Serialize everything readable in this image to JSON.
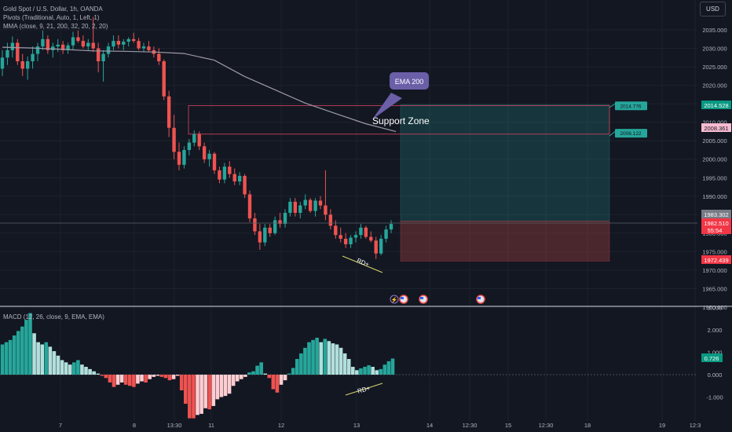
{
  "legend": {
    "line1": "Gold Spot / U.S. Dollar, 1h, OANDA",
    "line2": "Pivots (Traditional, Auto, 1, Left, 1)",
    "line3": "MMA (close, 9, 21, 200, 32, 20, 2, 20)"
  },
  "macd_legend": "MACD (12, 26, close, 9, EMA, EMA)",
  "currency_button": "USD",
  "colors": {
    "up": "#26a69a",
    "down": "#ef5350",
    "macd_pos_weak": "#b2dfdb",
    "macd_neg_weak": "#ffcdd2",
    "ema": "#b2b5be",
    "accent": "#6b5fa8"
  },
  "chart_data": [
    {
      "type": "candlestick",
      "title": "Gold Spot / U.S. Dollar, 1h, OANDA",
      "ylim": [
        1960,
        2040
      ],
      "y_ticks": [
        1960,
        1965,
        1970,
        1975,
        1980,
        1985,
        1990,
        1995,
        2000,
        2005,
        2010,
        2015,
        2020,
        2025,
        2030,
        2035
      ],
      "y_tick_labels": [
        "1960.000",
        "1965.000",
        "1970.000",
        "1975.000",
        "1980.000",
        "1985.000",
        "1990.000",
        "1995.000",
        "2000.000",
        "2005.000",
        "2010.000",
        "2015.000",
        "2020.000",
        "2025.000",
        "2030.000",
        "2035.000"
      ],
      "x_tick_labels": [
        "7",
        "8",
        "13:30",
        "11",
        "12",
        "13",
        "14",
        "12:30",
        "15",
        "12:30",
        "18",
        "19",
        "12:3"
      ],
      "price_labels": {
        "top_zone": "2014.528",
        "mid_zone": "2008.361",
        "current_price": "1983.302",
        "last_price": "1982.510",
        "countdown": "55:54",
        "stop": "1972.439"
      },
      "position_labels": {
        "upper": "2014.776",
        "lower": "2006.122"
      },
      "annotations": {
        "ema": "EMA 200",
        "zone": "Support Zone",
        "divergence": "RD+"
      },
      "series": [
        {
          "name": "EMA 200",
          "values": [
            2030.3,
            2030.1,
            2029.7,
            2029.3,
            2029.2,
            2029.0,
            2028.6,
            2026.8,
            2022.4,
            2018.8,
            2015.2,
            2012.4,
            2009.6,
            2007.5
          ]
        }
      ],
      "candles": [
        {
          "o": 2024.5,
          "h": 2029.5,
          "l": 2022.5,
          "c": 2027.5
        },
        {
          "o": 2027.5,
          "h": 2031.5,
          "l": 2025.5,
          "c": 2029.5
        },
        {
          "o": 2029.5,
          "h": 2033.2,
          "l": 2027.5,
          "c": 2031.5
        },
        {
          "o": 2031.5,
          "h": 2032.5,
          "l": 2025.5,
          "c": 2026.5
        },
        {
          "o": 2026.5,
          "h": 2028.5,
          "l": 2022.5,
          "c": 2024.5
        },
        {
          "o": 2024.5,
          "h": 2027.8,
          "l": 2021.5,
          "c": 2026.5
        },
        {
          "o": 2026.5,
          "h": 2030.5,
          "l": 2024.5,
          "c": 2028.5
        },
        {
          "o": 2028.5,
          "h": 2031.5,
          "l": 2026.5,
          "c": 2030.5
        },
        {
          "o": 2030.5,
          "h": 2034.8,
          "l": 2029.5,
          "c": 2032.5
        },
        {
          "o": 2032.5,
          "h": 2033.5,
          "l": 2028.5,
          "c": 2029.5
        },
        {
          "o": 2029.5,
          "h": 2031.5,
          "l": 2027.5,
          "c": 2030.5
        },
        {
          "o": 2030.5,
          "h": 2032.5,
          "l": 2029.0,
          "c": 2031.0
        },
        {
          "o": 2031.0,
          "h": 2032.0,
          "l": 2028.5,
          "c": 2029.5
        },
        {
          "o": 2029.5,
          "h": 2031.5,
          "l": 2028.5,
          "c": 2030.8
        },
        {
          "o": 2030.8,
          "h": 2034.5,
          "l": 2029.5,
          "c": 2033.0
        },
        {
          "o": 2033.0,
          "h": 2034.8,
          "l": 2031.5,
          "c": 2032.0
        },
        {
          "o": 2032.0,
          "h": 2033.5,
          "l": 2030.0,
          "c": 2030.5
        },
        {
          "o": 2030.5,
          "h": 2032.5,
          "l": 2029.5,
          "c": 2031.5
        },
        {
          "o": 2031.5,
          "h": 2038.5,
          "l": 2029.0,
          "c": 2030.0
        },
        {
          "o": 2030.0,
          "h": 2031.5,
          "l": 2023.5,
          "c": 2026.5
        },
        {
          "o": 2026.5,
          "h": 2029.5,
          "l": 2021.0,
          "c": 2028.5
        },
        {
          "o": 2028.5,
          "h": 2031.5,
          "l": 2027.5,
          "c": 2030.5
        },
        {
          "o": 2030.5,
          "h": 2033.5,
          "l": 2029.5,
          "c": 2032.0
        },
        {
          "o": 2032.0,
          "h": 2033.5,
          "l": 2030.0,
          "c": 2031.0
        },
        {
          "o": 2031.0,
          "h": 2032.5,
          "l": 2029.5,
          "c": 2031.8
        },
        {
          "o": 2031.8,
          "h": 2033.0,
          "l": 2030.5,
          "c": 2032.5
        },
        {
          "o": 2032.5,
          "h": 2034.2,
          "l": 2031.5,
          "c": 2032.0
        },
        {
          "o": 2032.0,
          "h": 2032.8,
          "l": 2029.5,
          "c": 2030.0
        },
        {
          "o": 2030.0,
          "h": 2031.5,
          "l": 2029.0,
          "c": 2030.5
        },
        {
          "o": 2030.5,
          "h": 2032.0,
          "l": 2029.0,
          "c": 2029.5
        },
        {
          "o": 2029.5,
          "h": 2030.5,
          "l": 2027.5,
          "c": 2028.5
        },
        {
          "o": 2028.5,
          "h": 2030.0,
          "l": 2025.5,
          "c": 2026.5
        },
        {
          "o": 2026.5,
          "h": 2027.0,
          "l": 2016.0,
          "c": 2017.0
        },
        {
          "o": 2017.0,
          "h": 2018.5,
          "l": 2006.0,
          "c": 2008.5
        },
        {
          "o": 2008.5,
          "h": 2012.0,
          "l": 2000.0,
          "c": 2002.0
        },
        {
          "o": 2002.0,
          "h": 2004.5,
          "l": 1997.0,
          "c": 1998.5
        },
        {
          "o": 1998.5,
          "h": 2003.5,
          "l": 1997.5,
          "c": 2002.5
        },
        {
          "o": 2002.5,
          "h": 2005.5,
          "l": 2001.0,
          "c": 2004.5
        },
        {
          "o": 2004.5,
          "h": 2007.8,
          "l": 2003.5,
          "c": 2006.8
        },
        {
          "o": 2006.8,
          "h": 2007.5,
          "l": 2002.5,
          "c": 2003.5
        },
        {
          "o": 2003.5,
          "h": 2004.5,
          "l": 1999.0,
          "c": 2000.0
        },
        {
          "o": 2000.0,
          "h": 2002.5,
          "l": 1998.0,
          "c": 2001.5
        },
        {
          "o": 2001.5,
          "h": 2002.0,
          "l": 1996.0,
          "c": 1997.0
        },
        {
          "o": 1997.0,
          "h": 1998.0,
          "l": 1993.5,
          "c": 1994.5
        },
        {
          "o": 1994.5,
          "h": 1999.0,
          "l": 1993.5,
          "c": 1998.0
        },
        {
          "o": 1998.0,
          "h": 1999.5,
          "l": 1995.0,
          "c": 1996.0
        },
        {
          "o": 1996.0,
          "h": 1997.5,
          "l": 1993.0,
          "c": 1994.0
        },
        {
          "o": 1994.0,
          "h": 1996.5,
          "l": 1993.0,
          "c": 1995.5
        },
        {
          "o": 1995.5,
          "h": 1996.0,
          "l": 1989.5,
          "c": 1990.5
        },
        {
          "o": 1990.5,
          "h": 1991.5,
          "l": 1983.0,
          "c": 1984.0
        },
        {
          "o": 1984.0,
          "h": 1985.5,
          "l": 1979.5,
          "c": 1980.5
        },
        {
          "o": 1980.5,
          "h": 1982.5,
          "l": 1975.5,
          "c": 1977.5
        },
        {
          "o": 1977.5,
          "h": 1982.5,
          "l": 1976.5,
          "c": 1981.5
        },
        {
          "o": 1981.5,
          "h": 1982.5,
          "l": 1979.0,
          "c": 1980.0
        },
        {
          "o": 1980.0,
          "h": 1984.5,
          "l": 1979.5,
          "c": 1983.5
        },
        {
          "o": 1983.5,
          "h": 1985.5,
          "l": 1981.5,
          "c": 1982.5
        },
        {
          "o": 1982.5,
          "h": 1986.5,
          "l": 1981.5,
          "c": 1985.5
        },
        {
          "o": 1985.5,
          "h": 1989.5,
          "l": 1984.5,
          "c": 1988.5
        },
        {
          "o": 1988.5,
          "h": 1989.5,
          "l": 1984.5,
          "c": 1985.5
        },
        {
          "o": 1985.5,
          "h": 1988.5,
          "l": 1984.0,
          "c": 1987.5
        },
        {
          "o": 1987.5,
          "h": 1990.5,
          "l": 1986.5,
          "c": 1989.0
        },
        {
          "o": 1989.0,
          "h": 1989.5,
          "l": 1985.5,
          "c": 1986.0
        },
        {
          "o": 1986.0,
          "h": 1989.5,
          "l": 1984.5,
          "c": 1988.8
        },
        {
          "o": 1988.8,
          "h": 1990.0,
          "l": 1986.5,
          "c": 1987.5
        },
        {
          "o": 1987.5,
          "h": 1997.0,
          "l": 1983.5,
          "c": 1985.0
        },
        {
          "o": 1985.0,
          "h": 1986.5,
          "l": 1981.0,
          "c": 1982.0
        },
        {
          "o": 1982.0,
          "h": 1983.5,
          "l": 1978.5,
          "c": 1979.5
        },
        {
          "o": 1979.5,
          "h": 1981.5,
          "l": 1977.5,
          "c": 1978.5
        },
        {
          "o": 1978.5,
          "h": 1980.0,
          "l": 1976.0,
          "c": 1977.0
        },
        {
          "o": 1977.0,
          "h": 1979.5,
          "l": 1976.0,
          "c": 1978.8
        },
        {
          "o": 1978.8,
          "h": 1980.5,
          "l": 1977.5,
          "c": 1979.5
        },
        {
          "o": 1979.5,
          "h": 1982.5,
          "l": 1978.5,
          "c": 1981.5
        },
        {
          "o": 1981.5,
          "h": 1982.0,
          "l": 1978.5,
          "c": 1979.0
        },
        {
          "o": 1979.0,
          "h": 1980.5,
          "l": 1977.5,
          "c": 1978.0
        },
        {
          "o": 1978.0,
          "h": 1979.0,
          "l": 1973.0,
          "c": 1974.5
        },
        {
          "o": 1974.5,
          "h": 1979.5,
          "l": 1974.0,
          "c": 1978.5
        },
        {
          "o": 1978.5,
          "h": 1982.0,
          "l": 1977.5,
          "c": 1981.0
        },
        {
          "o": 1981.0,
          "h": 1983.5,
          "l": 1980.0,
          "c": 1982.5
        }
      ]
    },
    {
      "type": "bar",
      "title": "MACD (12, 26, close, 9, EMA, EMA)",
      "ylim": [
        -1.6,
        3.0
      ],
      "y_tick_labels": [
        "3.000",
        "2.000",
        "1.000",
        "0.000",
        "-1.000"
      ],
      "current_value": "0.726",
      "values": [
        1.35,
        1.45,
        1.55,
        1.75,
        1.95,
        2.15,
        2.45,
        2.75,
        1.85,
        1.45,
        1.35,
        1.45,
        1.25,
        1.05,
        0.85,
        0.65,
        0.55,
        0.45,
        0.55,
        0.65,
        0.45,
        0.35,
        0.25,
        0.15,
        0.05,
        -0.05,
        -0.15,
        -0.35,
        -0.55,
        -0.45,
        -0.35,
        -0.45,
        -0.5,
        -0.55,
        -0.4,
        -0.3,
        -0.35,
        -0.2,
        -0.1,
        -0.05,
        -0.1,
        -0.15,
        -0.25,
        -0.2,
        -0.05,
        -0.7,
        -1.3,
        -1.95,
        -1.95,
        -1.8,
        -1.75,
        -1.5,
        -1.55,
        -1.4,
        -1.1,
        -1.0,
        -0.95,
        -0.85,
        -0.5,
        -0.3,
        -0.2,
        -0.1,
        0.1,
        0.15,
        0.4,
        0.55,
        0.05,
        -0.15,
        -0.65,
        -0.8,
        -0.45,
        -0.25,
        0.05,
        0.3,
        0.7,
        0.95,
        1.2,
        1.45,
        1.55,
        1.65,
        1.45,
        1.6,
        1.5,
        1.4,
        1.35,
        1.2,
        0.95,
        0.7,
        0.35,
        0.2,
        0.28,
        0.35,
        0.42,
        0.35,
        0.2,
        0.25,
        0.45,
        0.6,
        0.72
      ]
    }
  ]
}
